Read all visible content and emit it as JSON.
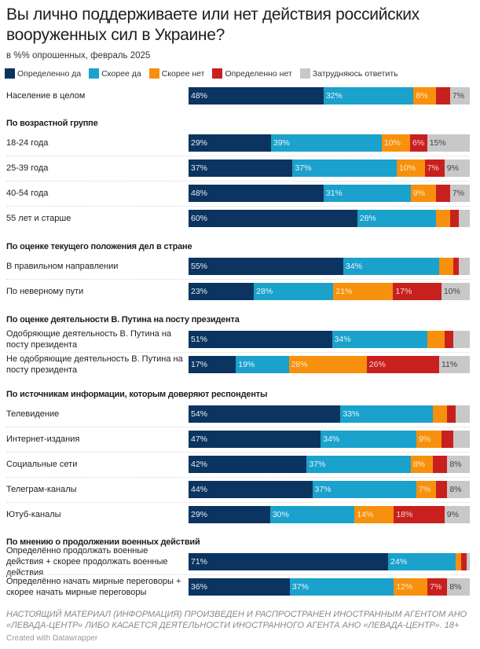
{
  "chart_data": {
    "type": "bar",
    "orientation": "horizontal",
    "stacked": true,
    "title": "Вы лично поддерживаете или нет действия российских вооруженных сил в Украине?",
    "subtitle": "в %% опрошенных, февраль 2025",
    "xlim": [
      0,
      100
    ],
    "legend_position": "top-left",
    "series": [
      {
        "name": "Определенно да",
        "color": "#0b3460",
        "label_color": "#e6edf5"
      },
      {
        "name": "Скорее да",
        "color": "#1aa1cc",
        "label_color": "#e8f6fb"
      },
      {
        "name": "Скорее нет",
        "color": "#f7910d",
        "label_color": "#fde9c8"
      },
      {
        "name": "Определенно нет",
        "color": "#c8201f",
        "label_color": "#f6d4d4"
      },
      {
        "name": "Затрудняюсь ответить",
        "color": "#c8c8c8",
        "label_color": "#444444"
      }
    ],
    "groups": [
      {
        "header": "",
        "rows": [
          {
            "label": "Население в целом",
            "values": [
              48,
              32,
              8,
              5,
              7
            ],
            "labels": [
              "48%",
              "32%",
              "8%",
              "",
              "7%"
            ]
          }
        ]
      },
      {
        "header": "По возрастной группе",
        "rows": [
          {
            "label": "18-24 года",
            "values": [
              29,
              39,
              10,
              6,
              15
            ],
            "labels": [
              "29%",
              "39%",
              "10%",
              "6%",
              "15%"
            ]
          },
          {
            "label": "25-39 года",
            "values": [
              37,
              37,
              10,
              7,
              9
            ],
            "labels": [
              "37%",
              "37%",
              "10%",
              "7%",
              "9%"
            ]
          },
          {
            "label": "40-54 года",
            "values": [
              48,
              31,
              9,
              5,
              7
            ],
            "labels": [
              "48%",
              "31%",
              "9%",
              "",
              "7%"
            ]
          },
          {
            "label": "55 лет и старше",
            "values": [
              60,
              28,
              5,
              3,
              4
            ],
            "labels": [
              "60%",
              "28%",
              "",
              "",
              ""
            ]
          }
        ]
      },
      {
        "header": "По оценке текущего положения дел в стране",
        "rows": [
          {
            "label": "В правильном направлении",
            "values": [
              55,
              34,
              5,
              2,
              4
            ],
            "labels": [
              "55%",
              "34%",
              "",
              "",
              ""
            ]
          },
          {
            "label": "По неверному пути",
            "values": [
              23,
              28,
              21,
              17,
              10
            ],
            "labels": [
              "23%",
              "28%",
              "21%",
              "17%",
              "10%"
            ]
          }
        ]
      },
      {
        "header": "По оценке деятельности В. Путина на посту президента",
        "rows": [
          {
            "label": "Одобряющие деятельность В. Путина на посту президента",
            "values": [
              51,
              34,
              6,
              3,
              6
            ],
            "labels": [
              "51%",
              "34%",
              "",
              "",
              ""
            ]
          },
          {
            "label": "Не одобряющие деятельность В. Путина на посту президента",
            "values": [
              17,
              19,
              28,
              26,
              11
            ],
            "labels": [
              "17%",
              "19%",
              "28%",
              "26%",
              "11%"
            ]
          }
        ]
      },
      {
        "header": "По источникам информации, которым доверяют респонденты",
        "rows": [
          {
            "label": "Телевидение",
            "values": [
              54,
              33,
              5,
              3,
              5
            ],
            "labels": [
              "54%",
              "33%",
              "",
              "",
              ""
            ]
          },
          {
            "label": "Интернет-издания",
            "values": [
              47,
              34,
              9,
              4,
              6
            ],
            "labels": [
              "47%",
              "34%",
              "9%",
              "",
              ""
            ]
          },
          {
            "label": "Социальные сети",
            "values": [
              42,
              37,
              8,
              5,
              8
            ],
            "labels": [
              "42%",
              "37%",
              "8%",
              "",
              "8%"
            ]
          },
          {
            "label": "Телеграм-каналы",
            "values": [
              44,
              37,
              7,
              4,
              8
            ],
            "labels": [
              "44%",
              "37%",
              "7%",
              "",
              "8%"
            ]
          },
          {
            "label": "Ютуб-каналы",
            "values": [
              29,
              30,
              14,
              18,
              9
            ],
            "labels": [
              "29%",
              "30%",
              "14%",
              "18%",
              "9%"
            ]
          }
        ]
      },
      {
        "header": "По мнению о продолжении военных действий",
        "rows": [
          {
            "label": "Определённо продолжать военные действия + скорее продолжать военные действия",
            "values": [
              71,
              24,
              2,
              2,
              1
            ],
            "labels": [
              "71%",
              "24%",
              "",
              "",
              ""
            ]
          },
          {
            "label": "Определённо начать мирные переговоры + скорее начать мирные переговоры",
            "values": [
              36,
              37,
              12,
              7,
              8
            ],
            "labels": [
              "36%",
              "37%",
              "12%",
              "7%",
              "8%"
            ]
          }
        ]
      }
    ]
  },
  "footer": {
    "note": "НАСТОЯЩИЙ МАТЕРИАЛ (ИНФОРМАЦИЯ) ПРОИЗВЕДЕН И РАСПРОСТРАНЕН ИНОСТРАННЫМ АГЕНТОМ АНО «ЛЕВАДА-ЦЕНТР» ЛИБО КАСАЕТСЯ ДЕЯТЕЛЬНОСТИ ИНОСТРАННОГО АГЕНТА АНО «ЛЕВАДА-ЦЕНТР». 18+",
    "credit": "Created with Datawrapper"
  }
}
